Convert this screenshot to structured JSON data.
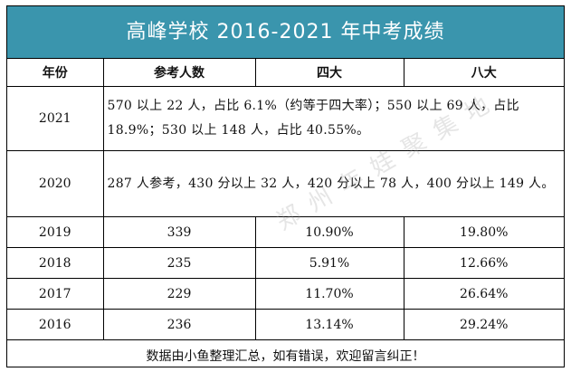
{
  "title": "高峰学校 2016-2021 年中考成绩",
  "headers": {
    "year": "年份",
    "count": "参考人数",
    "sida": "四大",
    "bada": "八大"
  },
  "notes": {
    "y2021": {
      "year": "2021",
      "text": "570 以上 22 人，占比 6.1%（约等于四大率）；550 以上 69 人，占比 18.9%；530 以上 148 人，占比 40.55%。"
    },
    "y2020": {
      "year": "2020",
      "text": "287 人参考，430 分以上 32 人，420 分以上 78 人，400 分以上 149 人。"
    }
  },
  "rows": [
    {
      "year": "2019",
      "count": "339",
      "sida": "10.90%",
      "bada": "19.80%"
    },
    {
      "year": "2018",
      "count": "235",
      "sida": "5.91%",
      "bada": "12.66%"
    },
    {
      "year": "2017",
      "count": "229",
      "sida": "11.70%",
      "bada": "26.64%"
    },
    {
      "year": "2016",
      "count": "236",
      "sida": "13.14%",
      "bada": "29.24%"
    }
  ],
  "footer": "数据由小鱼整理汇总，如有错误，欢迎留言纠正！",
  "watermark": "郑州年娃聚集地",
  "colors": {
    "title_bg": "#3a95ad",
    "title_text": "#ffffff"
  }
}
